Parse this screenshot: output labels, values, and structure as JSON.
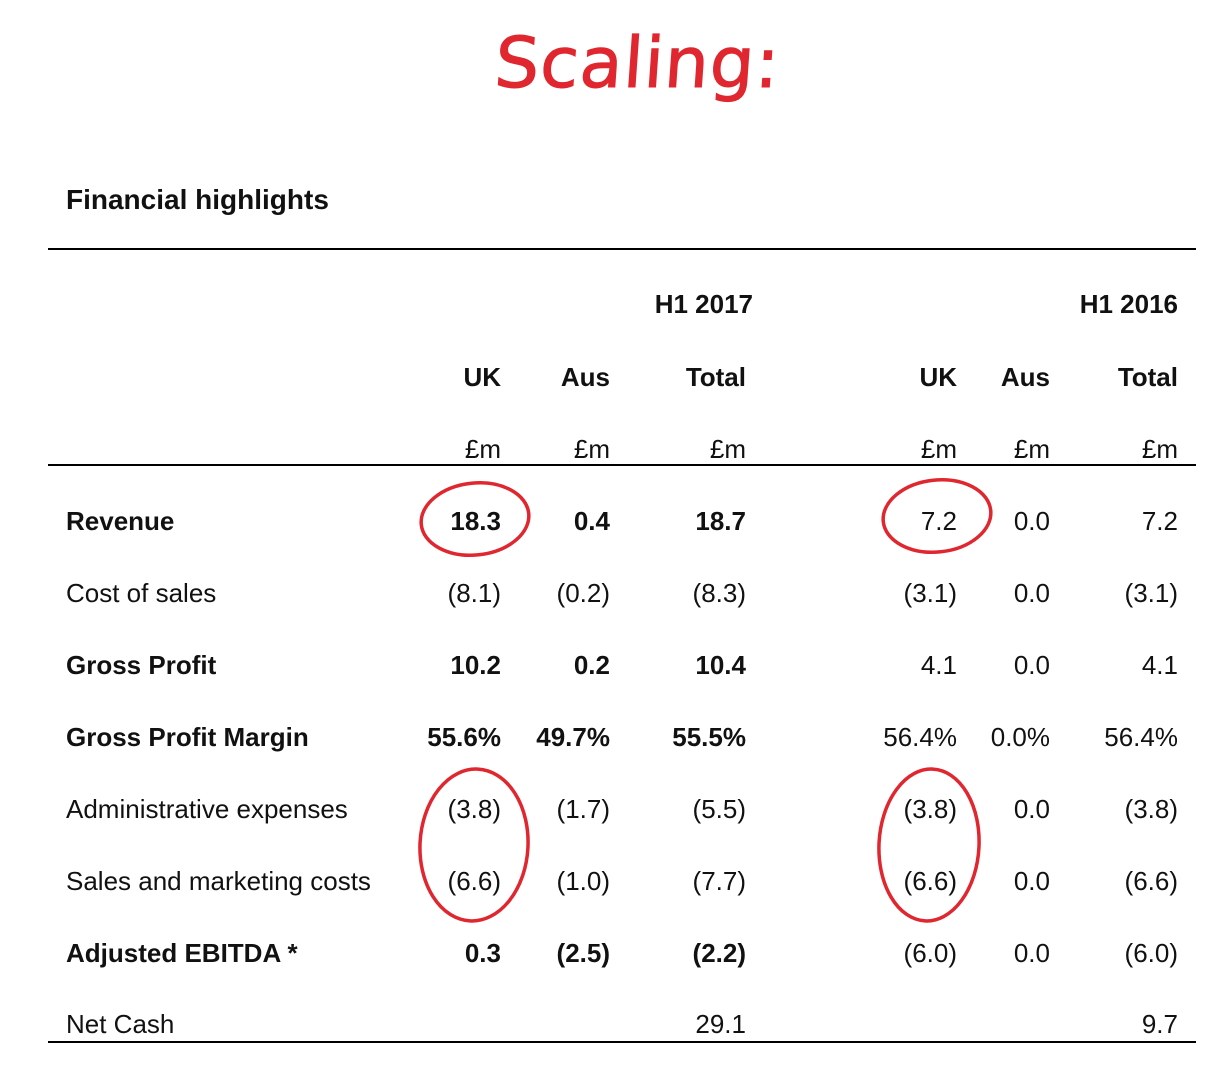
{
  "annotation": {
    "text": "Scaling:",
    "color": "#e0262e"
  },
  "section_title": "Financial highlights",
  "periods": [
    {
      "label": "H1 2017"
    },
    {
      "label": "H1 2016"
    }
  ],
  "column_headers": {
    "h1_2017": {
      "uk": "UK",
      "aus": "Aus",
      "total": "Total"
    },
    "h1_2016": {
      "uk": "UK",
      "aus": "Aus",
      "total": "Total"
    }
  },
  "units": "£m",
  "rows": [
    {
      "label": "Revenue",
      "bold": true,
      "h1_2017": {
        "uk": "18.3",
        "aus": "0.4",
        "total": "18.7"
      },
      "h1_2016": {
        "uk": "7.2",
        "aus": "0.0",
        "total": "7.2"
      }
    },
    {
      "label": "Cost of sales",
      "bold": false,
      "h1_2017": {
        "uk": "(8.1)",
        "aus": "(0.2)",
        "total": "(8.3)"
      },
      "h1_2016": {
        "uk": "(3.1)",
        "aus": "0.0",
        "total": "(3.1)"
      }
    },
    {
      "label": "Gross Profit",
      "bold": true,
      "h1_2017": {
        "uk": "10.2",
        "aus": "0.2",
        "total": "10.4"
      },
      "h1_2016": {
        "uk": "4.1",
        "aus": "0.0",
        "total": "4.1"
      }
    },
    {
      "label": "Gross Profit Margin",
      "bold": true,
      "h1_2017": {
        "uk": "55.6%",
        "aus": "49.7%",
        "total": "55.5%"
      },
      "h1_2016": {
        "uk": "56.4%",
        "aus": "0.0%",
        "total": "56.4%"
      }
    },
    {
      "label": "Administrative expenses",
      "bold": false,
      "h1_2017": {
        "uk": "(3.8)",
        "aus": "(1.7)",
        "total": "(5.5)"
      },
      "h1_2016": {
        "uk": "(3.8)",
        "aus": "0.0",
        "total": "(3.8)"
      }
    },
    {
      "label": "Sales and marketing costs",
      "bold": false,
      "h1_2017": {
        "uk": "(6.6)",
        "aus": "(1.0)",
        "total": "(7.7)"
      },
      "h1_2016": {
        "uk": "(6.6)",
        "aus": "0.0",
        "total": "(6.6)"
      }
    },
    {
      "label": "Adjusted EBITDA *",
      "bold": true,
      "h1_2017": {
        "uk": "0.3",
        "aus": "(2.5)",
        "total": "(2.2)"
      },
      "h1_2016": {
        "uk": "(6.0)",
        "aus": "0.0",
        "total": "(6.0)"
      }
    },
    {
      "label": "Net Cash",
      "bold": false,
      "h1_2017": {
        "uk": "",
        "aus": "",
        "total": "29.1"
      },
      "h1_2016": {
        "uk": "",
        "aus": "",
        "total": "9.7"
      }
    }
  ]
}
